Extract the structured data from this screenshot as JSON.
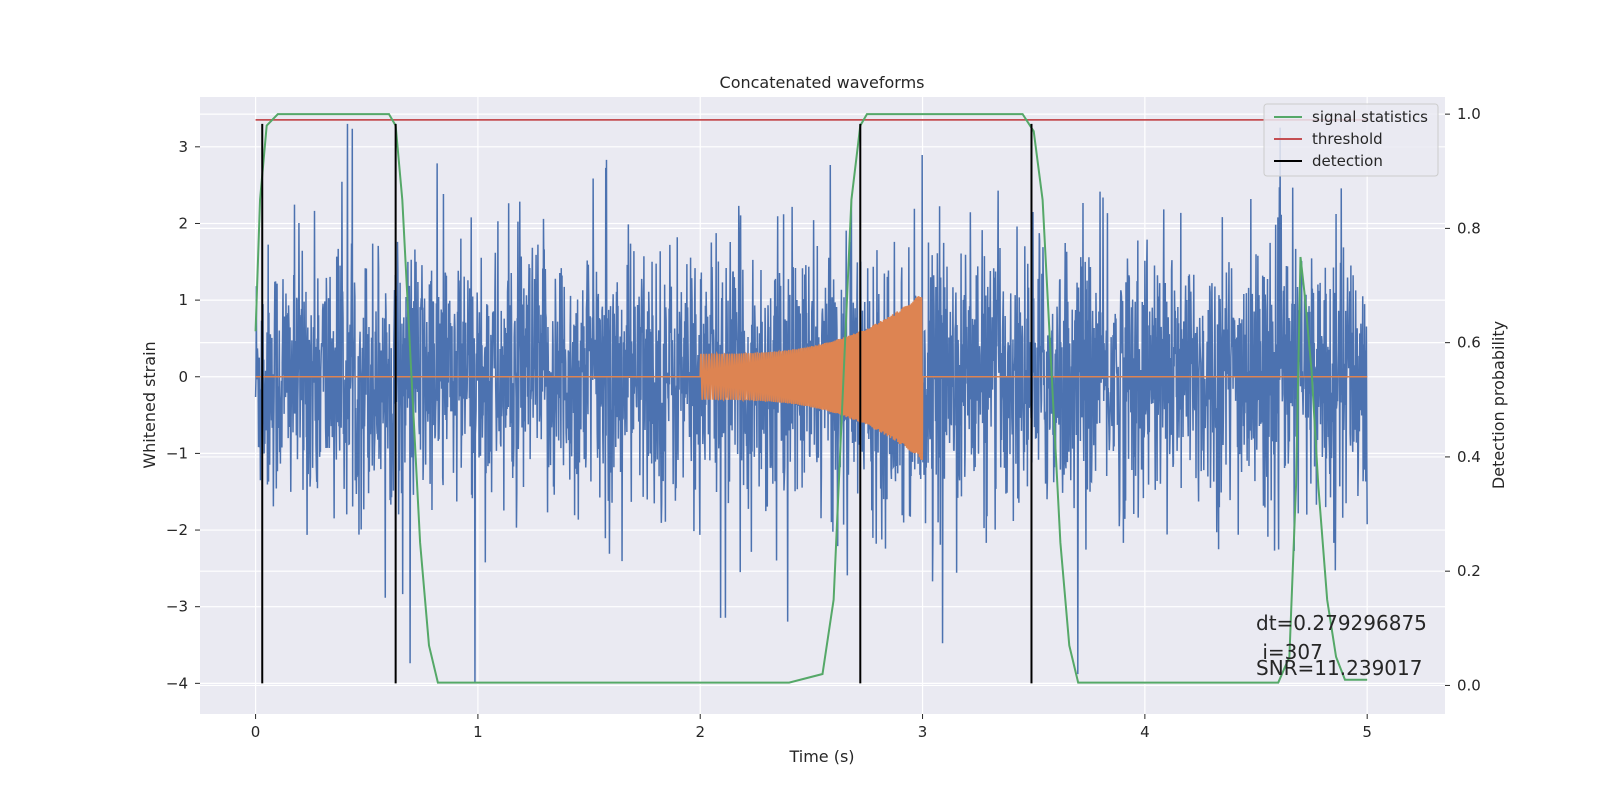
{
  "chart_data": {
    "type": "line",
    "title": "Concatenated waveforms",
    "xlabel": "Time (s)",
    "ylabel": "Whitened strain",
    "y2label": "Detection probability",
    "xlim": [
      -0.25,
      5.35
    ],
    "ylim": [
      -4.4,
      3.65
    ],
    "y2lim": [
      -0.05,
      1.03
    ],
    "xticks": [
      0,
      1,
      2,
      3,
      4,
      5
    ],
    "yticks": [
      -4,
      -3,
      -2,
      -1,
      0,
      1,
      2,
      3
    ],
    "y2ticks": [
      0.0,
      0.2,
      0.4,
      0.6,
      0.8,
      1.0
    ],
    "ytick_labels": [
      "−4",
      "−3",
      "−2",
      "−1",
      "0",
      "1",
      "2",
      "3"
    ],
    "y2tick_labels": [
      "0.0",
      "0.2",
      "0.4",
      "0.6",
      "0.8",
      "1.0"
    ],
    "grid": true,
    "legend_position": "top-right",
    "colors": {
      "strain": "#4c72b0",
      "template": "#dd8452",
      "statistics": "#55a868",
      "threshold": "#c44e52",
      "detection": "#000000",
      "background": "#eaeaf2"
    },
    "series": [
      {
        "key": "strain",
        "description_range": "noise approx ±2.5, spikes to ±3.3, t 0 to 5"
      },
      {
        "key": "template",
        "description_range": "chirp from t=2.0 to 3.0, amplitude 0.3 to 1.1"
      },
      {
        "name": "signal statistics",
        "axis": "right",
        "x": [
          0.0,
          0.02,
          0.05,
          0.1,
          0.6,
          0.63,
          0.66,
          0.7,
          0.74,
          0.78,
          0.82,
          1.0,
          2.4,
          2.55,
          2.6,
          2.64,
          2.68,
          2.72,
          2.75,
          3.45,
          3.5,
          3.54,
          3.58,
          3.62,
          3.66,
          3.7,
          4.6,
          4.65,
          4.68,
          4.7,
          4.72,
          4.75,
          4.78,
          4.82,
          4.86,
          4.9,
          5.0
        ],
        "y": [
          0.62,
          0.85,
          0.98,
          1.0,
          1.0,
          0.98,
          0.85,
          0.55,
          0.25,
          0.07,
          0.005,
          0.005,
          0.005,
          0.02,
          0.15,
          0.5,
          0.85,
          0.98,
          1.0,
          1.0,
          0.97,
          0.85,
          0.55,
          0.25,
          0.07,
          0.005,
          0.005,
          0.05,
          0.35,
          0.75,
          0.68,
          0.55,
          0.35,
          0.15,
          0.05,
          0.01,
          0.01
        ]
      },
      {
        "name": "threshold",
        "axis": "right",
        "x": [
          0,
          5
        ],
        "y": [
          0.99,
          0.99
        ]
      },
      {
        "name": "detection",
        "axis": "left",
        "x": [
          0.03,
          0.63,
          2.72,
          3.49
        ],
        "ymin": -4.0,
        "ymax": 3.3
      }
    ],
    "legend": [
      "signal statistics",
      "threshold",
      "detection"
    ],
    "annotation": [
      "dt=0.279296875",
      " i=307",
      "SNR=11.239017"
    ]
  }
}
